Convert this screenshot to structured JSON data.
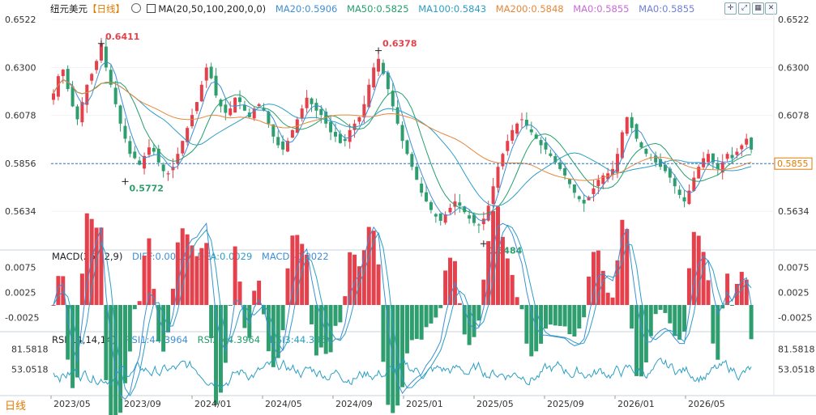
{
  "header": {
    "symbol": "纽元美元",
    "period": "【日线】",
    "ma_label": "MA(20,50,100,200,0,0)",
    "ma_values": [
      {
        "text": "MA20:0.5906",
        "color": "#3d8fd6"
      },
      {
        "text": "MA50:0.5825",
        "color": "#22a06b"
      },
      {
        "text": "MA100:0.5843",
        "color": "#2b9fc4"
      },
      {
        "text": "MA200:0.5848",
        "color": "#e8873a"
      },
      {
        "text": "MA0:0.5855",
        "color": "#c76ad9"
      },
      {
        "text": "MA0:0.5855",
        "color": "#6f7fd8"
      }
    ],
    "toolbar_icons": [
      "expand-icon",
      "fit-icon",
      "grid-icon",
      "close-icon"
    ]
  },
  "macd_legend": {
    "label": "MACD(26,12,9)",
    "diff": "DIFF:0.0018",
    "dea": "DEA:0.0029",
    "macd": "MACD:-0.0022"
  },
  "rsi_legend": {
    "label": "RSI(14,14,14)",
    "rsi1": "RSI1:44.3964",
    "rsi2": "RSI2:44.3964",
    "rsi3": "RSI3:44.3964"
  },
  "bottom_tab": "日线",
  "colors": {
    "up": "#e5414d",
    "down": "#2f9e6e",
    "current_line": "#2f74c6",
    "accent": "#e07b00"
  },
  "chart_data": {
    "type": "candlestick",
    "main": {
      "y_ticks": [
        "0.6522",
        "0.6300",
        "0.6078",
        "0.5856",
        "0.5634"
      ],
      "ylim": [
        0.547,
        0.656
      ],
      "current_price": "0.5855",
      "annotations": [
        {
          "text": "0.6411",
          "date": "2023/07",
          "value": 0.6411,
          "kind": "high"
        },
        {
          "text": "0.5772",
          "date": "2023/10",
          "value": 0.5772,
          "kind": "low"
        },
        {
          "text": "0.6378",
          "date": "2024/09",
          "value": 0.6378,
          "kind": "high"
        },
        {
          "text": "0.5484",
          "date": "2025/04",
          "value": 0.5484,
          "kind": "low"
        }
      ],
      "close_series": [
        0.618,
        0.626,
        0.629,
        0.62,
        0.612,
        0.606,
        0.614,
        0.622,
        0.627,
        0.633,
        0.641,
        0.63,
        0.622,
        0.613,
        0.604,
        0.597,
        0.59,
        0.588,
        0.585,
        0.589,
        0.593,
        0.591,
        0.586,
        0.582,
        0.581,
        0.584,
        0.59,
        0.596,
        0.602,
        0.608,
        0.614,
        0.622,
        0.63,
        0.625,
        0.617,
        0.612,
        0.609,
        0.611,
        0.616,
        0.614,
        0.61,
        0.607,
        0.611,
        0.613,
        0.61,
        0.604,
        0.598,
        0.594,
        0.592,
        0.596,
        0.601,
        0.606,
        0.611,
        0.616,
        0.613,
        0.61,
        0.608,
        0.604,
        0.6,
        0.598,
        0.595,
        0.596,
        0.601,
        0.604,
        0.607,
        0.613,
        0.622,
        0.63,
        0.634,
        0.627,
        0.62,
        0.612,
        0.604,
        0.596,
        0.59,
        0.584,
        0.578,
        0.572,
        0.568,
        0.564,
        0.561,
        0.559,
        0.562,
        0.565,
        0.568,
        0.566,
        0.563,
        0.56,
        0.558,
        0.557,
        0.56,
        0.566,
        0.575,
        0.584,
        0.59,
        0.596,
        0.601,
        0.604,
        0.606,
        0.603,
        0.6,
        0.597,
        0.594,
        0.592,
        0.589,
        0.586,
        0.583,
        0.58,
        0.576,
        0.572,
        0.569,
        0.567,
        0.57,
        0.574,
        0.578,
        0.58,
        0.581,
        0.583,
        0.59,
        0.6,
        0.607,
        0.602,
        0.597,
        0.593,
        0.59,
        0.588,
        0.586,
        0.584,
        0.582,
        0.579,
        0.575,
        0.571,
        0.568,
        0.573,
        0.579,
        0.584,
        0.588,
        0.59,
        0.586,
        0.583,
        0.586,
        0.59,
        0.588,
        0.591,
        0.594,
        0.597,
        0.592
      ],
      "x_ticks": [
        "2023/05",
        "2023/09",
        "2024/01",
        "2024/05",
        "2024/09",
        "2025/01",
        "2025/05",
        "2025/09",
        "2026/01",
        "2026/05"
      ],
      "ma_series": [
        "MA20",
        "MA50",
        "MA100",
        "MA200"
      ]
    },
    "macd": {
      "y_ticks": [
        "0.0075",
        "0.0025",
        "-0.0025"
      ],
      "ylim": [
        -0.0045,
        0.009
      ]
    },
    "rsi": {
      "y_ticks": [
        "81.5818",
        "53.0518"
      ],
      "ylim": [
        20,
        90
      ]
    }
  }
}
